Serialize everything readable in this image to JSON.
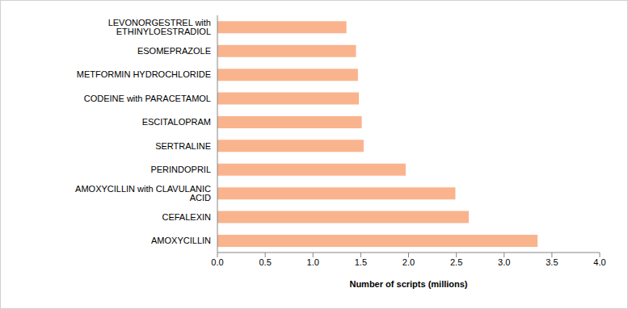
{
  "chart_data": {
    "type": "bar",
    "orientation": "horizontal",
    "x_label": "Number of scripts (millions)",
    "categories": [
      "LEVONORGESTREL with ETHINYLOESTRADIOL",
      "ESOMEPRAZOLE",
      "METFORMIN HYDROCHLORIDE",
      "CODEINE with PARACETAMOL",
      "ESCITALOPRAM",
      "SERTRALINE",
      "PERINDOPRIL",
      "AMOXYCILLIN with CLAVULANIC ACID",
      "CEFALEXIN",
      "AMOXYCILLIN"
    ],
    "values": [
      1.35,
      1.45,
      1.47,
      1.48,
      1.51,
      1.53,
      1.97,
      2.49,
      2.63,
      3.35
    ],
    "color": "#f9b48e",
    "xlim": [
      0,
      4
    ],
    "xticks": [
      {
        "value": 0,
        "label": "0.0"
      },
      0.5,
      {
        "value": 1,
        "label": "1.0"
      },
      1.5,
      {
        "value": 2,
        "label": "2.0"
      },
      2.5,
      {
        "value": 3,
        "label": "3.0"
      },
      3.5,
      {
        "value": 4,
        "label": "4.0"
      }
    ],
    "grid": false
  }
}
